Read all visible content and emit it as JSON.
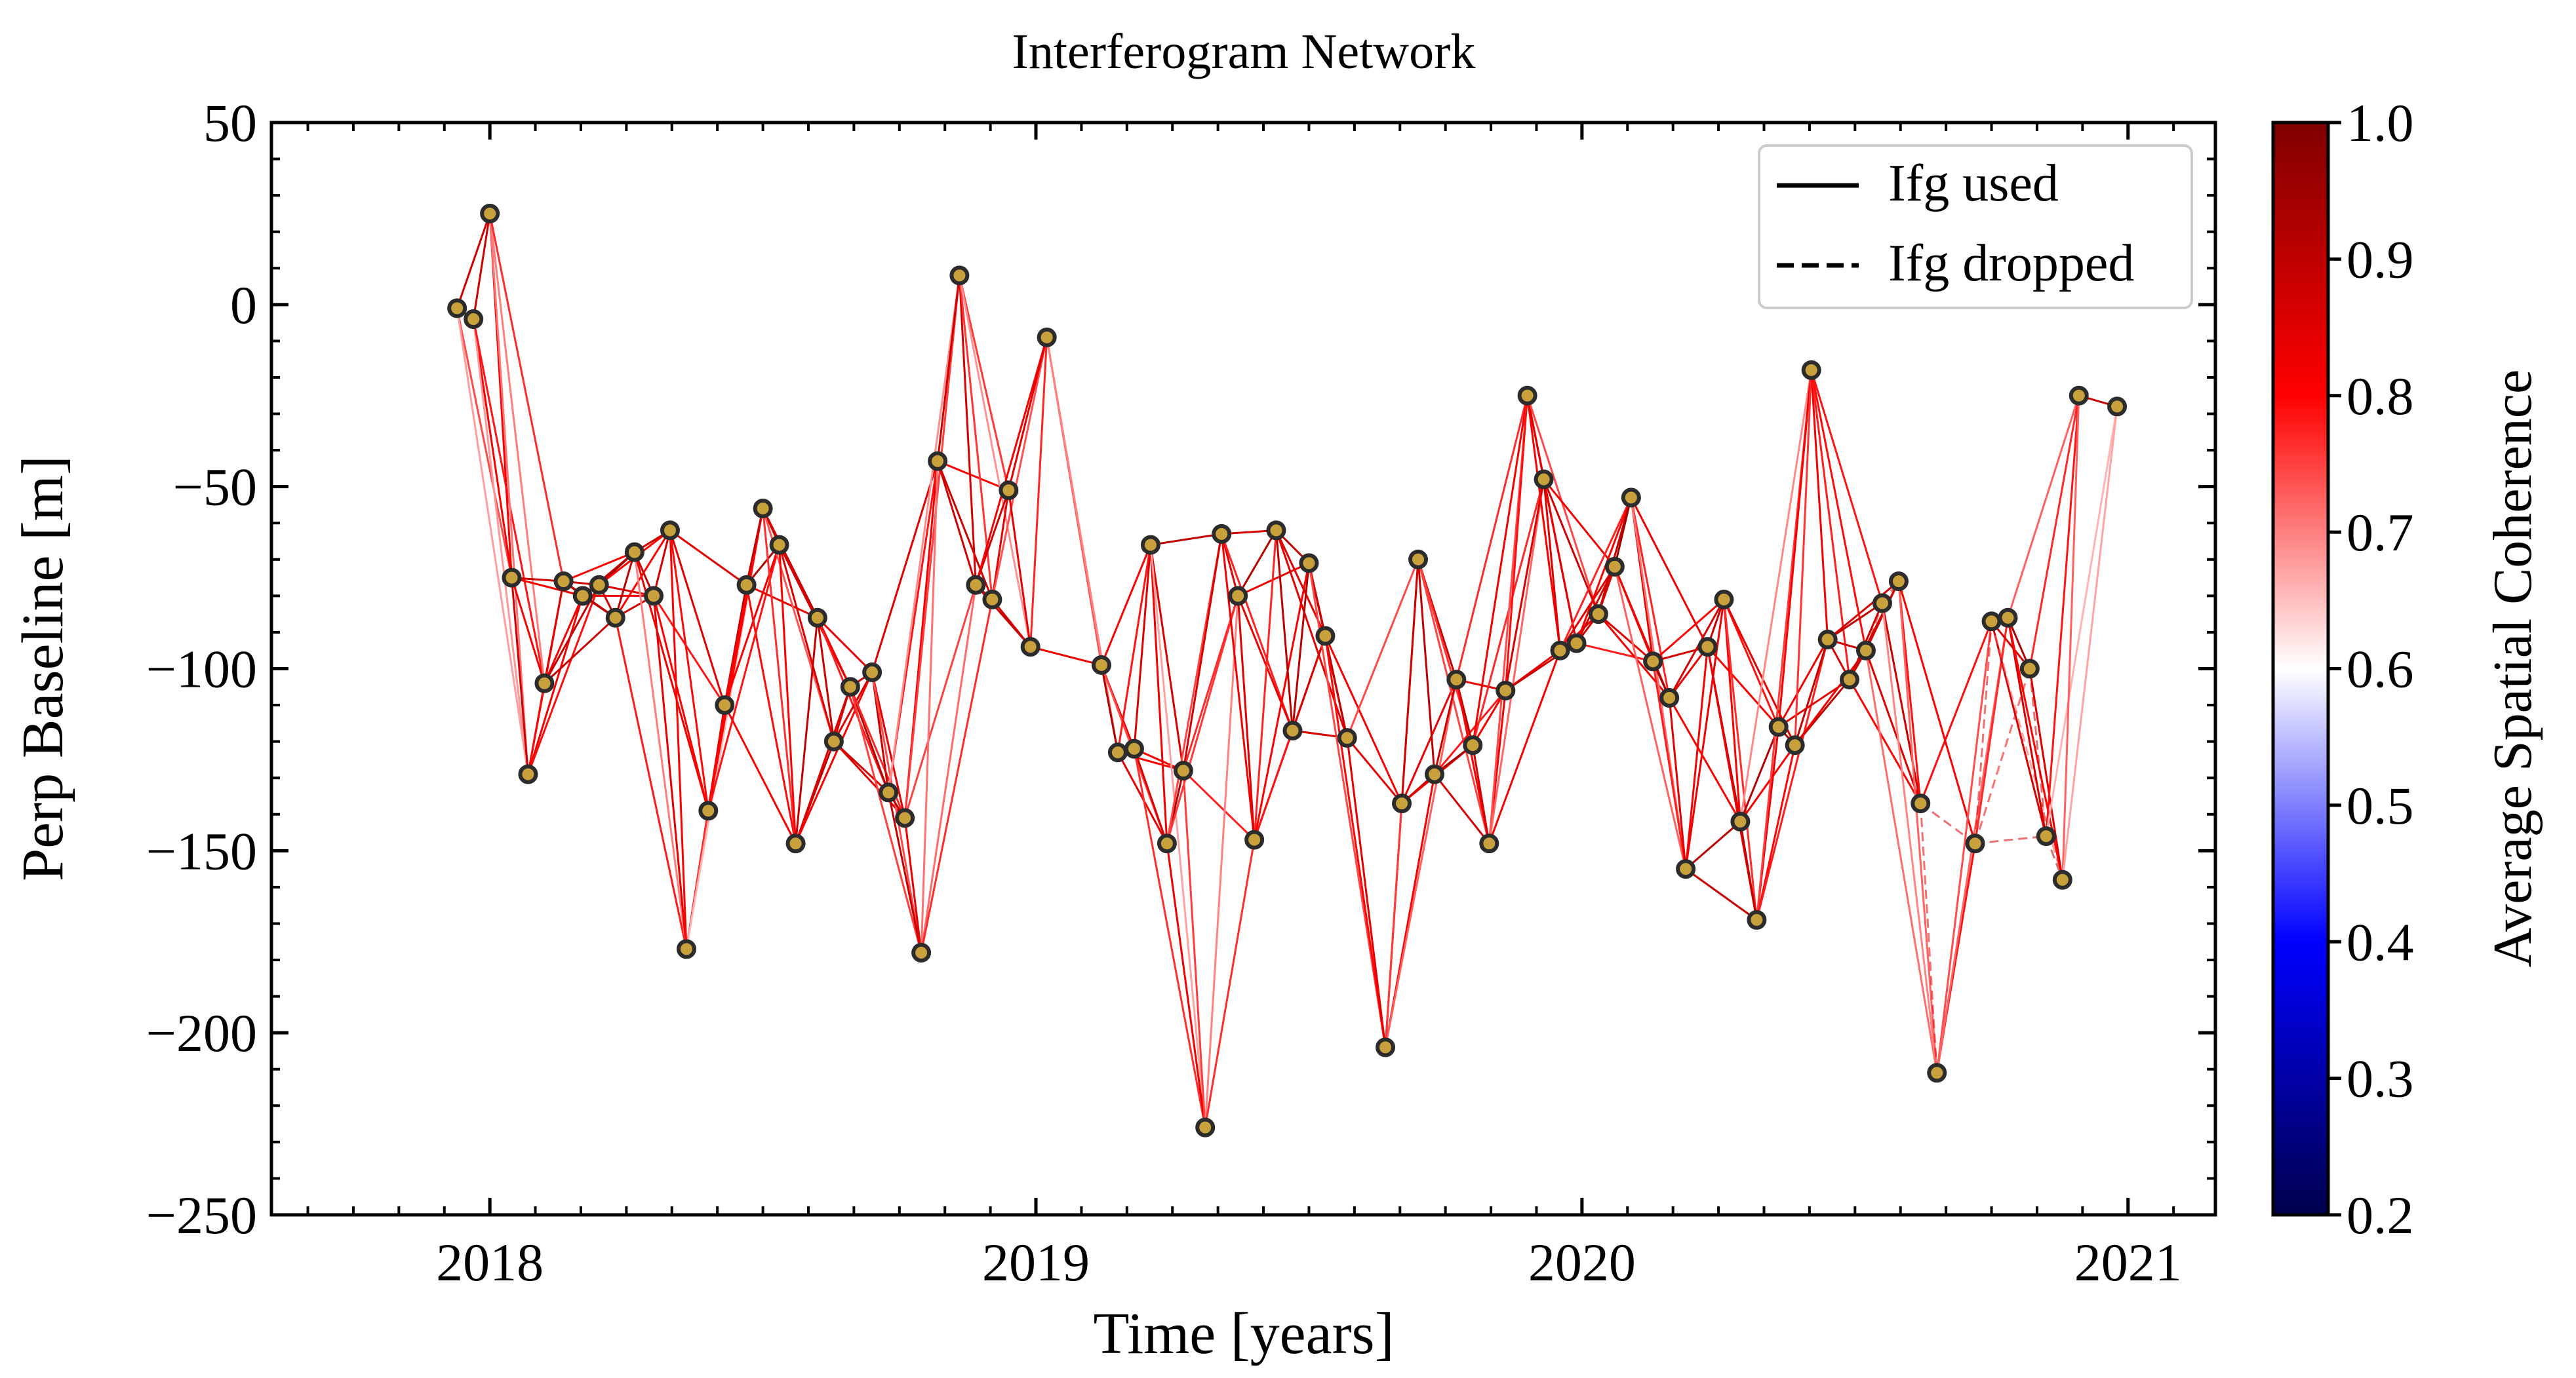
{
  "chart_data": {
    "type": "network",
    "title": "Interferogram Network",
    "xlabel": "Time [years]",
    "ylabel": "Perp Baseline [m]",
    "xlim": [
      2017.6,
      2021.16
    ],
    "ylim": [
      -250,
      50
    ],
    "xticks": [
      2018,
      2019,
      2020,
      2021
    ],
    "xtick_labels": [
      "2018",
      "2019",
      "2020",
      "2021"
    ],
    "yticks": [
      50,
      0,
      -50,
      -100,
      -150,
      -200,
      -250
    ],
    "ytick_labels": [
      "50",
      "0",
      "−50",
      "−100",
      "−150",
      "−200",
      "−250"
    ],
    "legend": {
      "position": "top-right",
      "entries": [
        {
          "label": "Ifg used",
          "style": "solid"
        },
        {
          "label": "Ifg dropped",
          "style": "dashed"
        }
      ]
    },
    "colorbar": {
      "label": "Average Spatial Coherence",
      "range": [
        0.2,
        1.0
      ],
      "ticks": [
        1.0,
        0.9,
        0.8,
        0.7,
        0.6,
        0.5,
        0.4,
        0.3,
        0.2
      ],
      "tick_labels": [
        "1.0",
        "0.9",
        "0.8",
        "0.7",
        "0.6",
        "0.5",
        "0.4",
        "0.3",
        "0.2"
      ],
      "colormap": [
        "#00004d",
        "#0000ff",
        "#ffffff",
        "#ff0000",
        "#800000"
      ]
    },
    "acquisitions": [
      [
        2017.94,
        -1
      ],
      [
        2017.97,
        -4
      ],
      [
        2018.0,
        25
      ],
      [
        2018.04,
        -75
      ],
      [
        2018.07,
        -129
      ],
      [
        2018.1,
        -104
      ],
      [
        2018.135,
        -76
      ],
      [
        2018.17,
        -80
      ],
      [
        2018.2,
        -77
      ],
      [
        2018.23,
        -86
      ],
      [
        2018.265,
        -68
      ],
      [
        2018.3,
        -80
      ],
      [
        2018.33,
        -62
      ],
      [
        2018.36,
        -177
      ],
      [
        2018.4,
        -139
      ],
      [
        2018.43,
        -110
      ],
      [
        2018.47,
        -77
      ],
      [
        2018.5,
        -56
      ],
      [
        2018.53,
        -66
      ],
      [
        2018.56,
        -148
      ],
      [
        2018.6,
        -86
      ],
      [
        2018.63,
        -120
      ],
      [
        2018.66,
        -105
      ],
      [
        2018.7,
        -101
      ],
      [
        2018.73,
        -134
      ],
      [
        2018.76,
        -141
      ],
      [
        2018.79,
        -178
      ],
      [
        2018.82,
        -43
      ],
      [
        2018.86,
        8
      ],
      [
        2018.89,
        -77
      ],
      [
        2018.92,
        -81
      ],
      [
        2018.95,
        -51
      ],
      [
        2018.99,
        -94
      ],
      [
        2019.02,
        -9
      ],
      [
        2019.12,
        -99
      ],
      [
        2019.15,
        -123
      ],
      [
        2019.18,
        -122
      ],
      [
        2019.21,
        -66
      ],
      [
        2019.24,
        -148
      ],
      [
        2019.27,
        -128
      ],
      [
        2019.31,
        -226
      ],
      [
        2019.34,
        -63
      ],
      [
        2019.37,
        -80
      ],
      [
        2019.4,
        -147
      ],
      [
        2019.44,
        -62
      ],
      [
        2019.47,
        -117
      ],
      [
        2019.5,
        -71
      ],
      [
        2019.53,
        -91
      ],
      [
        2019.57,
        -119
      ],
      [
        2019.64,
        -204
      ],
      [
        2019.67,
        -137
      ],
      [
        2019.7,
        -70
      ],
      [
        2019.73,
        -129
      ],
      [
        2019.77,
        -103
      ],
      [
        2019.8,
        -121
      ],
      [
        2019.83,
        -148
      ],
      [
        2019.86,
        -106
      ],
      [
        2019.9,
        -25
      ],
      [
        2019.93,
        -48
      ],
      [
        2019.96,
        -95
      ],
      [
        2019.99,
        -93
      ],
      [
        2020.03,
        -85
      ],
      [
        2020.06,
        -72
      ],
      [
        2020.09,
        -53
      ],
      [
        2020.13,
        -98
      ],
      [
        2020.16,
        -108
      ],
      [
        2020.19,
        -155
      ],
      [
        2020.23,
        -94
      ],
      [
        2020.26,
        -81
      ],
      [
        2020.29,
        -142
      ],
      [
        2020.32,
        -169
      ],
      [
        2020.36,
        -116
      ],
      [
        2020.39,
        -121
      ],
      [
        2020.42,
        -18
      ],
      [
        2020.45,
        -92
      ],
      [
        2020.49,
        -103
      ],
      [
        2020.52,
        -95
      ],
      [
        2020.55,
        -82
      ],
      [
        2020.58,
        -76
      ],
      [
        2020.62,
        -137
      ],
      [
        2020.65,
        -211
      ],
      [
        2020.72,
        -148
      ],
      [
        2020.75,
        -87
      ],
      [
        2020.78,
        -86
      ],
      [
        2020.82,
        -100
      ],
      [
        2020.85,
        -146
      ],
      [
        2020.88,
        -158
      ],
      [
        2020.91,
        -25
      ],
      [
        2020.98,
        -28
      ]
    ]
  }
}
